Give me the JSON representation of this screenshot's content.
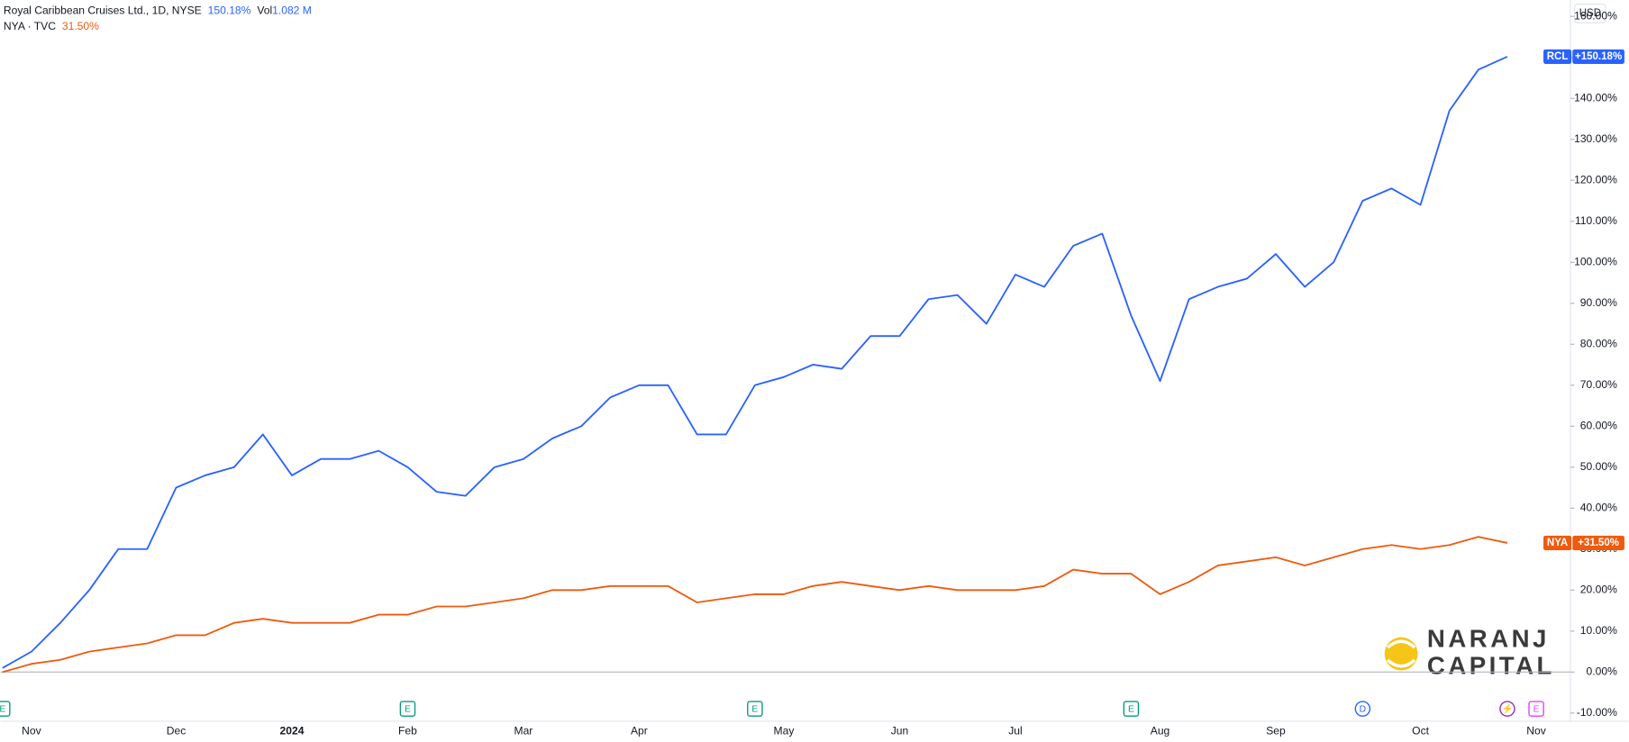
{
  "chart_data": {
    "type": "line",
    "title": "Royal Caribbean Cruises Ltd., 1D, NYSE",
    "title_value": "150.18%",
    "volume_label": "Vol",
    "volume_value": "1.082 M",
    "currency": "USD",
    "categories": [
      "",
      "Nov",
      null,
      null,
      null,
      null,
      "Dec",
      null,
      null,
      null,
      "2024",
      null,
      null,
      null,
      "Feb",
      null,
      null,
      null,
      "Mar",
      null,
      null,
      null,
      "Apr",
      null,
      null,
      null,
      null,
      "May",
      null,
      null,
      null,
      "Jun",
      null,
      null,
      null,
      "Jul",
      null,
      null,
      null,
      null,
      "Aug",
      null,
      null,
      null,
      "Sep",
      null,
      null,
      null,
      null,
      "Oct",
      null,
      null,
      null,
      "Nov"
    ],
    "series": [
      {
        "name": "RCL",
        "legend_name": "Royal Caribbean Cruises Ltd., 1D, NYSE",
        "badge": "+150.18%",
        "color": "#2962ff",
        "values": [
          1,
          5,
          12,
          20,
          30,
          30,
          45,
          48,
          50,
          58,
          48,
          52,
          52,
          54,
          50,
          44,
          43,
          50,
          52,
          57,
          60,
          67,
          70,
          70,
          58,
          58,
          70,
          72,
          75,
          74,
          82,
          82,
          91,
          92,
          85,
          97,
          94,
          104,
          107,
          87,
          71,
          91,
          94,
          96,
          102,
          94,
          100,
          115,
          118,
          114,
          137,
          147,
          150.18,
          null
        ]
      },
      {
        "name": "NYA",
        "legend_name": "NYA · TVC",
        "legend_value": "31.50%",
        "badge": "+31.50%",
        "color": "#ef5a0d",
        "values": [
          0,
          2,
          3,
          5,
          6,
          7,
          9,
          9,
          12,
          13,
          12,
          12,
          12,
          14,
          14,
          16,
          16,
          17,
          18,
          20,
          20,
          21,
          21,
          21,
          17,
          18,
          19,
          19,
          21,
          22,
          21,
          20,
          21,
          20,
          20,
          20,
          21,
          25,
          24,
          24,
          19,
          22,
          26,
          27,
          28,
          26,
          28,
          30,
          31,
          30,
          31,
          33,
          31.5,
          null
        ]
      }
    ],
    "ylim": [
      -12,
      164
    ],
    "yticks": [
      {
        "value": -10,
        "label": "-10.00%"
      },
      {
        "value": 0,
        "label": "0.00%"
      },
      {
        "value": 10,
        "label": "10.00%"
      },
      {
        "value": 20,
        "label": "20.00%"
      },
      {
        "value": 30,
        "label": "30.00%"
      },
      {
        "value": 40,
        "label": "40.00%"
      },
      {
        "value": 50,
        "label": "50.00%"
      },
      {
        "value": 60,
        "label": "60.00%"
      },
      {
        "value": 70,
        "label": "70.00%"
      },
      {
        "value": 80,
        "label": "80.00%"
      },
      {
        "value": 90,
        "label": "90.00%"
      },
      {
        "value": 100,
        "label": "100.00%"
      },
      {
        "value": 110,
        "label": "110.00%"
      },
      {
        "value": 120,
        "label": "120.00%"
      },
      {
        "value": 130,
        "label": "130.00%"
      },
      {
        "value": 140,
        "label": "140.00%"
      },
      {
        "value": 150,
        "label": "150.00%"
      },
      {
        "value": 160,
        "label": "160.00%"
      }
    ],
    "events": [
      {
        "label": "E",
        "index": 0,
        "color": "#089981"
      },
      {
        "label": "E",
        "index": 14,
        "color": "#089981"
      },
      {
        "label": "E",
        "index": 26,
        "color": "#089981"
      },
      {
        "label": "E",
        "index": 39,
        "color": "#089981"
      },
      {
        "label": "D",
        "index": 47,
        "color": "#2962ff"
      },
      {
        "label": "⚡",
        "index": 52,
        "color": "#9c27b0"
      },
      {
        "label": "E",
        "index": 53,
        "color": "#e040fb"
      }
    ],
    "logo": [
      "NARANJ",
      "CAPITAL"
    ]
  }
}
